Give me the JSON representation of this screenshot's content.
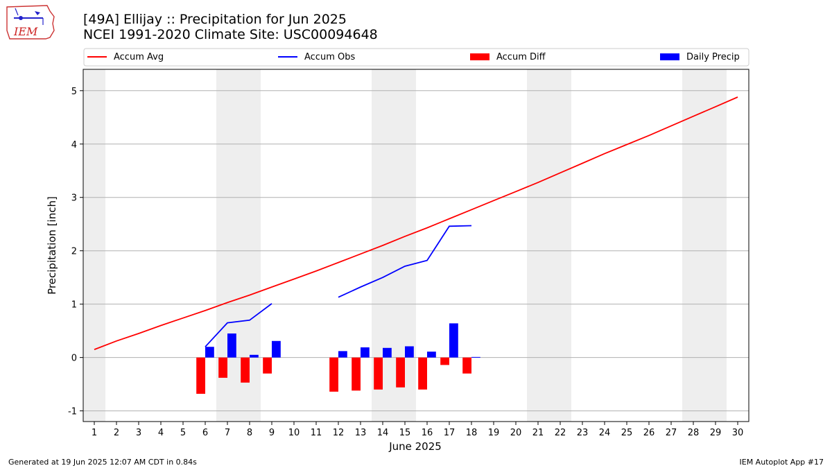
{
  "header": {
    "title_line1": "[49A] Ellijay :: Precipitation for Jun 2025",
    "title_line2": "NCEI 1991-2020 Climate Site: USC00094648"
  },
  "logo": {
    "text": "IEM",
    "icon": "iem-iowa-logo-icon"
  },
  "footer": {
    "generated": "Generated at 19 Jun 2025 12:07 AM CDT in 0.84s",
    "app": "IEM Autoplot App #17"
  },
  "colors": {
    "avg": "#ff0000",
    "obs": "#0000ff",
    "diff": "#ff0000",
    "daily": "#0000ff",
    "weekend": "#eeeeee",
    "grid": "#b0b0b0"
  },
  "chart_data": {
    "type": "bar",
    "xlabel": "June 2025",
    "ylabel": "Precipitation [inch]",
    "xlim": [
      0.5,
      30.5
    ],
    "ylim": [
      -1.2,
      5.4
    ],
    "xticks": [
      1,
      2,
      3,
      4,
      5,
      6,
      7,
      8,
      9,
      10,
      11,
      12,
      13,
      14,
      15,
      16,
      17,
      18,
      19,
      20,
      21,
      22,
      23,
      24,
      25,
      26,
      27,
      28,
      29,
      30
    ],
    "yticks": [
      -1,
      0,
      1,
      2,
      3,
      4,
      5
    ],
    "weekend_days": [
      1,
      7,
      8,
      14,
      15,
      21,
      22,
      28,
      29
    ],
    "legend": [
      "Accum Avg",
      "Accum Obs",
      "Accum Diff",
      "Daily Precip"
    ],
    "legend_position": "top",
    "grid": "y",
    "accum_avg": {
      "x": [
        1,
        2,
        3,
        4,
        5,
        6,
        7,
        8,
        9,
        10,
        11,
        12,
        13,
        14,
        15,
        16,
        17,
        18,
        19,
        20,
        21,
        22,
        23,
        24,
        25,
        26,
        27,
        28,
        29,
        30
      ],
      "values": [
        0.15,
        0.31,
        0.45,
        0.6,
        0.74,
        0.88,
        1.03,
        1.17,
        1.32,
        1.47,
        1.62,
        1.78,
        1.94,
        2.1,
        2.27,
        2.43,
        2.6,
        2.77,
        2.94,
        3.11,
        3.28,
        3.46,
        3.64,
        3.82,
        3.99,
        4.16,
        4.34,
        4.52,
        4.7,
        4.88
      ]
    },
    "accum_obs": [
      {
        "x": [
          6,
          7,
          8,
          9
        ],
        "values": [
          0.2,
          0.65,
          0.7,
          1.01
        ]
      },
      {
        "x": [
          12,
          13,
          14,
          15,
          16,
          17,
          18
        ],
        "values": [
          1.13,
          1.32,
          1.5,
          1.71,
          1.82,
          2.46,
          2.47
        ]
      }
    ],
    "accum_diff": {
      "x": [
        6,
        7,
        8,
        9,
        12,
        13,
        14,
        15,
        16,
        17,
        18
      ],
      "values": [
        -0.68,
        -0.38,
        -0.47,
        -0.3,
        -0.64,
        -0.62,
        -0.6,
        -0.56,
        -0.6,
        -0.14,
        -0.3
      ]
    },
    "daily_precip": {
      "x": [
        6,
        7,
        8,
        9,
        12,
        13,
        14,
        15,
        16,
        17,
        18
      ],
      "values": [
        0.2,
        0.45,
        0.05,
        0.31,
        0.12,
        0.19,
        0.18,
        0.21,
        0.11,
        0.64,
        0.01
      ]
    }
  }
}
